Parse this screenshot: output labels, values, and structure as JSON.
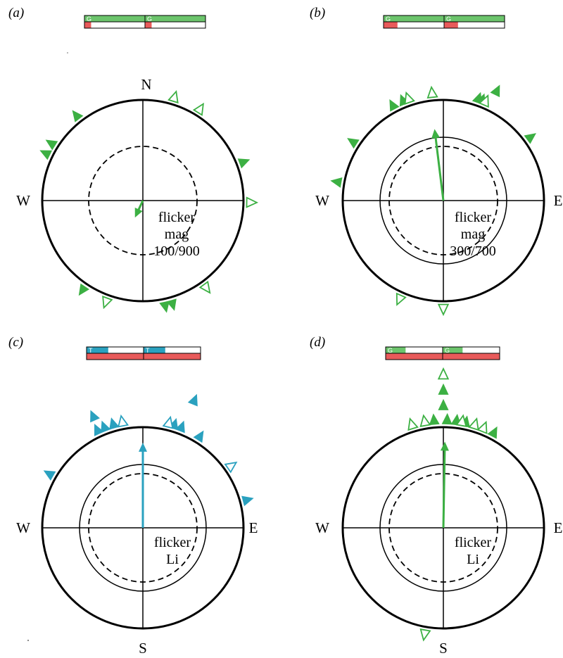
{
  "colors": {
    "green": "#3cb043",
    "green_light": "#6cc46c",
    "teal": "#2aa1bf",
    "red": "#e85a5a",
    "line": "#000000"
  },
  "panels": [
    {
      "label": "(a)",
      "cardinals": {
        "N": "N",
        "S": "",
        "E": "",
        "W": "W"
      },
      "text_lines": [
        "flicker",
        "mag",
        "100/900"
      ],
      "color": "#3cb043",
      "bar": {
        "letter": "G",
        "top_fill": 1.0,
        "bottom_fill": 0.11,
        "top_color": "#6cc46c"
      },
      "inner_circle": false,
      "mean_vector": {
        "angle_deg": 205,
        "length": 0.13
      },
      "filled_markers": [
        -38,
        -58,
        -64,
        69,
        -146,
        168,
        164
      ],
      "open_markers": [
        17,
        32,
        91,
        144,
        200
      ],
      "stacked_filled": [],
      "stacked_open": []
    },
    {
      "label": "(b)",
      "cardinals": {
        "N": "",
        "S": "",
        "E": "E",
        "W": "W"
      },
      "text_lines": [
        "flicker",
        "mag",
        "300/700"
      ],
      "color": "#3cb043",
      "bar": {
        "letter": "G",
        "top_fill": 1.0,
        "bottom_fill": 0.23,
        "top_color": "#6cc46c"
      },
      "inner_circle": true,
      "mean_vector": {
        "angle_deg": -7,
        "length": 0.66
      },
      "filled_markers": [
        -28,
        -22,
        19,
        21,
        54,
        -57,
        -80
      ],
      "open_markers": [
        -19,
        -6,
        23,
        180,
        -156
      ],
      "stacked_filled": [
        26
      ],
      "stacked_open": []
    },
    {
      "label": "(c)",
      "cardinals": {
        "N": "",
        "S": "S",
        "E": "E",
        "W": "W"
      },
      "text_lines": [
        "flicker",
        "Li"
      ],
      "color": "#2aa1bf",
      "bar": {
        "letter": "T",
        "top_fill": 0.38,
        "bottom_fill": 1.0,
        "top_color": "#2aa1bf"
      },
      "inner_circle": true,
      "mean_vector": {
        "angle_deg": 0,
        "length": 0.79
      },
      "filled_markers": [
        -25,
        -21,
        -16,
        17,
        21,
        32,
        75,
        -60
      ],
      "open_markers": [
        -11,
        14,
        55
      ],
      "stacked_filled": [
        -24,
        22
      ],
      "stacked_open": []
    },
    {
      "label": "(d)",
      "cardinals": {
        "N": "",
        "S": "S",
        "E": "E",
        "W": "W"
      },
      "text_lines": [
        "flicker",
        "Li"
      ],
      "color": "#3cb043",
      "bar": {
        "letter": "G",
        "top_fill": 0.35,
        "bottom_fill": 1.0,
        "top_color": "#6cc46c"
      },
      "inner_circle": true,
      "mean_vector": {
        "angle_deg": 1,
        "length": 0.8
      },
      "filled_markers": [
        -5,
        2,
        7,
        12,
        28
      ],
      "open_markers": [
        -17,
        -10,
        10,
        17,
        22,
        190
      ],
      "stacked_filled": [
        0,
        0
      ],
      "stacked_open": [
        0
      ]
    }
  ]
}
